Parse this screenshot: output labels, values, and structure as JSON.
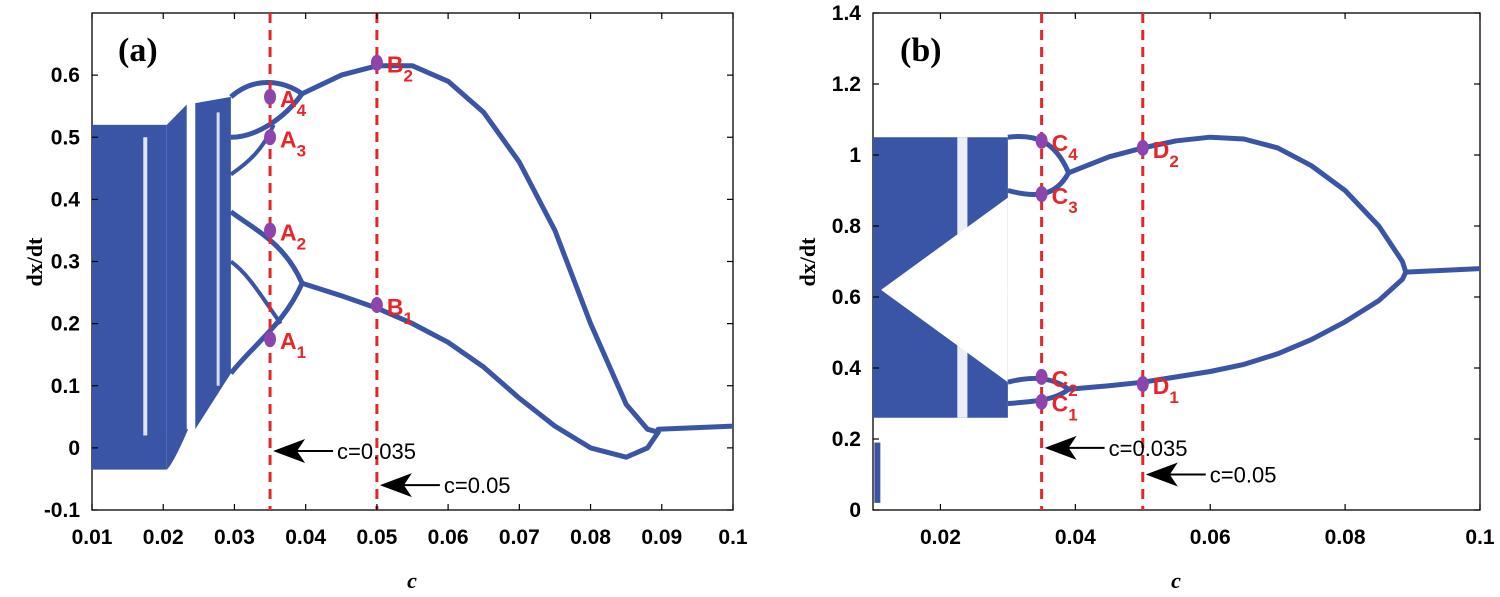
{
  "chart_data": [
    {
      "type": "bifurcation",
      "panel": "(a)",
      "xlabel": "c",
      "ylabel": "dx/dt",
      "xlim": [
        0.01,
        0.1
      ],
      "ylim": [
        -0.1,
        0.7
      ],
      "xticks": [
        "0.01",
        "0.02",
        "0.03",
        "0.04",
        "0.05",
        "0.06",
        "0.07",
        "0.08",
        "0.09",
        "0.1"
      ],
      "yticks": [
        "-0.1",
        "0",
        "0.1",
        "0.2",
        "0.3",
        "0.4",
        "0.5",
        "0.6"
      ],
      "color": "#3a55a6",
      "chaotic_band": {
        "x": [
          0.01,
          0.0205
        ],
        "y": [
          -0.035,
          0.52
        ]
      },
      "branches": [
        {
          "name": "upper",
          "x": [
            0.0395,
            0.045,
            0.05,
            0.055,
            0.06,
            0.065,
            0.07,
            0.075,
            0.08,
            0.085,
            0.088,
            0.0895
          ],
          "y": [
            0.57,
            0.6,
            0.615,
            0.615,
            0.59,
            0.54,
            0.46,
            0.35,
            0.2,
            0.07,
            0.03,
            0.025
          ]
        },
        {
          "name": "lower",
          "x": [
            0.0395,
            0.045,
            0.05,
            0.055,
            0.06,
            0.065,
            0.07,
            0.075,
            0.08,
            0.085,
            0.088,
            0.0895
          ],
          "y": [
            0.265,
            0.245,
            0.225,
            0.2,
            0.17,
            0.13,
            0.08,
            0.035,
            0.0,
            -0.015,
            0.0,
            0.025
          ]
        },
        {
          "name": "fixed",
          "x": [
            0.0895,
            0.1
          ],
          "y": [
            0.03,
            0.035
          ]
        }
      ],
      "points": [
        {
          "label": "A",
          "sub": "1",
          "x": 0.035,
          "y": 0.175
        },
        {
          "label": "A",
          "sub": "2",
          "x": 0.035,
          "y": 0.35
        },
        {
          "label": "A",
          "sub": "3",
          "x": 0.035,
          "y": 0.5
        },
        {
          "label": "A",
          "sub": "4",
          "x": 0.035,
          "y": 0.565
        },
        {
          "label": "B",
          "sub": "1",
          "x": 0.05,
          "y": 0.23
        },
        {
          "label": "B",
          "sub": "2",
          "x": 0.05,
          "y": 0.62
        }
      ],
      "vlines": [
        {
          "x": 0.035,
          "annotation": "c=0.035",
          "ann_y": -0.005
        },
        {
          "x": 0.05,
          "annotation": "c=0.05",
          "ann_y": -0.06
        }
      ]
    },
    {
      "type": "bifurcation",
      "panel": "(b)",
      "xlabel": "c",
      "ylabel": "dx/dt",
      "xlim": [
        0.01,
        0.1
      ],
      "ylim": [
        0,
        1.4
      ],
      "xticks": [
        "0.02",
        "0.04",
        "0.06",
        "0.08",
        "0.1"
      ],
      "yticks": [
        "0",
        "0.2",
        "0.4",
        "0.6",
        "0.8",
        "1",
        "1.2",
        "1.4"
      ],
      "color": "#3a55a6",
      "chaotic_band": {
        "x": [
          0.01,
          0.03
        ],
        "y": [
          0.26,
          1.05
        ]
      },
      "branches": [
        {
          "name": "upper",
          "x": [
            0.039,
            0.045,
            0.05,
            0.055,
            0.06,
            0.065,
            0.07,
            0.075,
            0.08,
            0.085,
            0.0885,
            0.089
          ],
          "y": [
            0.95,
            0.995,
            1.02,
            1.04,
            1.05,
            1.045,
            1.02,
            0.97,
            0.9,
            0.8,
            0.7,
            0.67
          ]
        },
        {
          "name": "lower",
          "x": [
            0.039,
            0.045,
            0.05,
            0.055,
            0.06,
            0.065,
            0.07,
            0.075,
            0.08,
            0.085,
            0.0885,
            0.089
          ],
          "y": [
            0.34,
            0.35,
            0.36,
            0.375,
            0.39,
            0.41,
            0.44,
            0.48,
            0.53,
            0.59,
            0.65,
            0.67
          ]
        },
        {
          "name": "fixed",
          "x": [
            0.089,
            0.1
          ],
          "y": [
            0.67,
            0.68
          ]
        }
      ],
      "points": [
        {
          "label": "C",
          "sub": "1",
          "x": 0.035,
          "y": 0.305
        },
        {
          "label": "C",
          "sub": "2",
          "x": 0.035,
          "y": 0.375
        },
        {
          "label": "C",
          "sub": "3",
          "x": 0.035,
          "y": 0.89
        },
        {
          "label": "C",
          "sub": "4",
          "x": 0.035,
          "y": 1.04
        },
        {
          "label": "D",
          "sub": "1",
          "x": 0.05,
          "y": 0.355
        },
        {
          "label": "D",
          "sub": "2",
          "x": 0.05,
          "y": 1.02
        }
      ],
      "vlines": [
        {
          "x": 0.035,
          "annotation": "c=0.035",
          "ann_y": 0.175
        },
        {
          "x": 0.05,
          "annotation": "c=0.05",
          "ann_y": 0.1
        }
      ]
    }
  ]
}
